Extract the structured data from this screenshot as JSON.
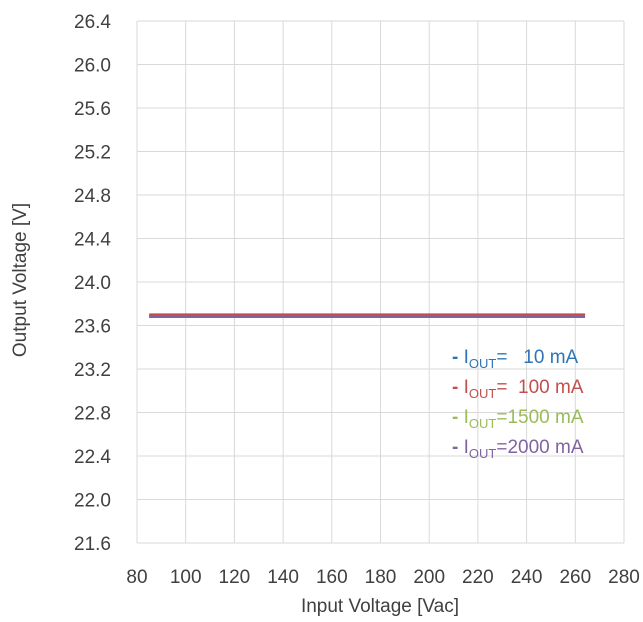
{
  "chart_data": {
    "type": "line",
    "title": "",
    "xlabel": "Input Voltage [Vac]",
    "ylabel": "Output Voltage [V]",
    "xlim": [
      80,
      280
    ],
    "ylim": [
      21.6,
      26.4
    ],
    "xticks": [
      80,
      100,
      120,
      140,
      160,
      180,
      200,
      220,
      240,
      260,
      280
    ],
    "yticks": [
      21.6,
      22.0,
      22.4,
      22.8,
      23.2,
      23.6,
      24.0,
      24.4,
      24.8,
      25.2,
      25.6,
      26.0,
      26.4
    ],
    "xtick_labels": [
      "80",
      "100",
      "120",
      "140",
      "160",
      "180",
      "200",
      "220",
      "240",
      "260",
      "280"
    ],
    "ytick_labels": [
      "21.6",
      "22.0",
      "22.4",
      "22.8",
      "23.2",
      "23.6",
      "24.0",
      "24.4",
      "24.8",
      "25.2",
      "25.6",
      "26.0",
      "26.4"
    ],
    "grid": true,
    "legend_position": "lower-right",
    "series": [
      {
        "name": "- IOUT= 10 mA",
        "legend": {
          "dash": "-",
          "main": "I",
          "sub": "OUT",
          "rest": "=   10 mA"
        },
        "color": "#2e75b6",
        "x": [
          85,
          264
        ],
        "y": [
          23.69,
          23.69
        ]
      },
      {
        "name": "- IOUT= 100 mA",
        "legend": {
          "dash": "-",
          "main": "I",
          "sub": "OUT",
          "rest": "=  100 mA"
        },
        "color": "#c0504d",
        "x": [
          85,
          264
        ],
        "y": [
          23.7,
          23.7
        ]
      },
      {
        "name": "- IOUT=1500 mA",
        "legend": {
          "dash": "-",
          "main": "I",
          "sub": "OUT",
          "rest": "=1500 mA"
        },
        "color": "#9bbb59",
        "x": [
          85,
          264
        ],
        "y": [
          23.68,
          23.68
        ]
      },
      {
        "name": "- IOUT=2000 mA",
        "legend": {
          "dash": "-",
          "main": "I",
          "sub": "OUT",
          "rest": "=2000 mA"
        },
        "color": "#8064a2",
        "x": [
          85,
          264
        ],
        "y": [
          23.68,
          23.68
        ]
      }
    ]
  }
}
